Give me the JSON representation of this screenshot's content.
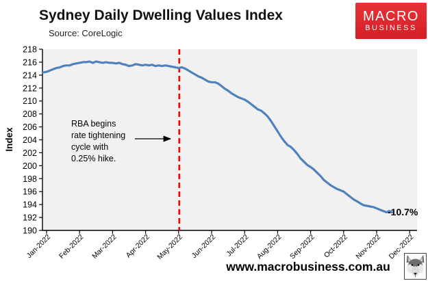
{
  "header": {
    "title": "Sydney Daily Dwelling Values Index",
    "source": "Source: CoreLogic"
  },
  "logo": {
    "line1": "MACRO",
    "line2": "BUSINESS",
    "bg_color": "#dc2127",
    "text_color": "#ffffff"
  },
  "footer": {
    "url": "www.macrobusiness.com.au",
    "mascot_icon": "wolf-icon"
  },
  "chart_data": {
    "type": "line",
    "title": "Sydney Daily Dwelling Values Index",
    "source": "Source: CoreLogic",
    "xlabel": "",
    "ylabel": "Index",
    "ylim": [
      190,
      218
    ],
    "ytick_step": 2,
    "grid": false,
    "legend": "none",
    "plot_bg": "#f1f1f1",
    "axis_color": "#000000",
    "categories": [
      "Jan-2022",
      "Feb-2022",
      "Mar-2022",
      "Apr-2022",
      "May-2022",
      "Jun-2022",
      "Jul-2022",
      "Aug-2022",
      "Sep-2022",
      "Oct-2022",
      "Nov-2022",
      "Dec-2022"
    ],
    "series": [
      {
        "name": "Sydney daily dwelling values index",
        "color": "#4f81bd",
        "points": [
          [
            -0.12,
            214.4
          ],
          [
            0.0,
            214.5
          ],
          [
            0.1,
            214.7
          ],
          [
            0.2,
            214.9
          ],
          [
            0.3,
            215.1
          ],
          [
            0.4,
            215.2
          ],
          [
            0.5,
            215.4
          ],
          [
            0.6,
            215.5
          ],
          [
            0.7,
            215.5
          ],
          [
            0.8,
            215.7
          ],
          [
            0.9,
            215.8
          ],
          [
            1.0,
            215.9
          ],
          [
            1.1,
            216.0
          ],
          [
            1.2,
            216.0
          ],
          [
            1.3,
            216.1
          ],
          [
            1.4,
            215.9
          ],
          [
            1.5,
            216.1
          ],
          [
            1.6,
            216.0
          ],
          [
            1.7,
            215.9
          ],
          [
            1.8,
            216.0
          ],
          [
            1.9,
            215.9
          ],
          [
            2.0,
            215.9
          ],
          [
            2.1,
            215.8
          ],
          [
            2.2,
            215.9
          ],
          [
            2.3,
            215.7
          ],
          [
            2.4,
            215.6
          ],
          [
            2.5,
            215.4
          ],
          [
            2.6,
            215.5
          ],
          [
            2.7,
            215.7
          ],
          [
            2.8,
            215.6
          ],
          [
            2.9,
            215.5
          ],
          [
            3.0,
            215.6
          ],
          [
            3.1,
            215.5
          ],
          [
            3.2,
            215.6
          ],
          [
            3.3,
            215.4
          ],
          [
            3.4,
            215.5
          ],
          [
            3.5,
            215.4
          ],
          [
            3.6,
            215.5
          ],
          [
            3.7,
            215.4
          ],
          [
            3.8,
            215.3
          ],
          [
            3.9,
            215.2
          ],
          [
            4.0,
            215.1
          ],
          [
            4.1,
            215.2
          ],
          [
            4.2,
            215.0
          ],
          [
            4.3,
            214.7
          ],
          [
            4.4,
            214.4
          ],
          [
            4.5,
            214.1
          ],
          [
            4.6,
            213.8
          ],
          [
            4.7,
            213.6
          ],
          [
            4.8,
            213.3
          ],
          [
            4.9,
            213.0
          ],
          [
            5.0,
            212.9
          ],
          [
            5.1,
            212.9
          ],
          [
            5.2,
            212.7
          ],
          [
            5.3,
            212.3
          ],
          [
            5.4,
            211.9
          ],
          [
            5.5,
            211.6
          ],
          [
            5.6,
            211.2
          ],
          [
            5.7,
            210.9
          ],
          [
            5.8,
            210.6
          ],
          [
            5.9,
            210.4
          ],
          [
            6.0,
            210.2
          ],
          [
            6.1,
            209.9
          ],
          [
            6.2,
            209.5
          ],
          [
            6.3,
            209.1
          ],
          [
            6.4,
            208.7
          ],
          [
            6.5,
            208.5
          ],
          [
            6.6,
            208.1
          ],
          [
            6.7,
            207.6
          ],
          [
            6.8,
            206.9
          ],
          [
            6.9,
            206.1
          ],
          [
            7.0,
            205.3
          ],
          [
            7.1,
            204.5
          ],
          [
            7.2,
            203.8
          ],
          [
            7.3,
            203.2
          ],
          [
            7.4,
            202.9
          ],
          [
            7.5,
            202.4
          ],
          [
            7.6,
            201.8
          ],
          [
            7.7,
            201.1
          ],
          [
            7.8,
            200.6
          ],
          [
            7.9,
            200.1
          ],
          [
            8.0,
            199.8
          ],
          [
            8.1,
            199.4
          ],
          [
            8.2,
            198.9
          ],
          [
            8.3,
            198.4
          ],
          [
            8.4,
            197.8
          ],
          [
            8.5,
            197.4
          ],
          [
            8.6,
            197.0
          ],
          [
            8.7,
            196.7
          ],
          [
            8.8,
            196.4
          ],
          [
            8.9,
            196.2
          ],
          [
            9.0,
            196.0
          ],
          [
            9.1,
            195.6
          ],
          [
            9.2,
            195.2
          ],
          [
            9.3,
            194.8
          ],
          [
            9.4,
            194.5
          ],
          [
            9.5,
            194.2
          ],
          [
            9.6,
            193.9
          ],
          [
            9.7,
            193.8
          ],
          [
            9.8,
            193.7
          ],
          [
            9.9,
            193.6
          ],
          [
            10.0,
            193.4
          ],
          [
            10.1,
            193.2
          ],
          [
            10.2,
            193.0
          ],
          [
            10.3,
            192.8
          ],
          [
            10.38,
            193.0
          ],
          [
            10.46,
            192.8
          ]
        ]
      }
    ],
    "event_line": {
      "x_month": 4.02,
      "color": "#ff0000",
      "style": "dashed",
      "meaning": "RBA first rate hike (May-2022)"
    },
    "annotation": {
      "text": "RBA begins\nrate tightening\ncycle with\n0.25% hike."
    },
    "end_label": {
      "text": "-10.7%",
      "x_month": 10.46,
      "value": 192.8
    }
  }
}
